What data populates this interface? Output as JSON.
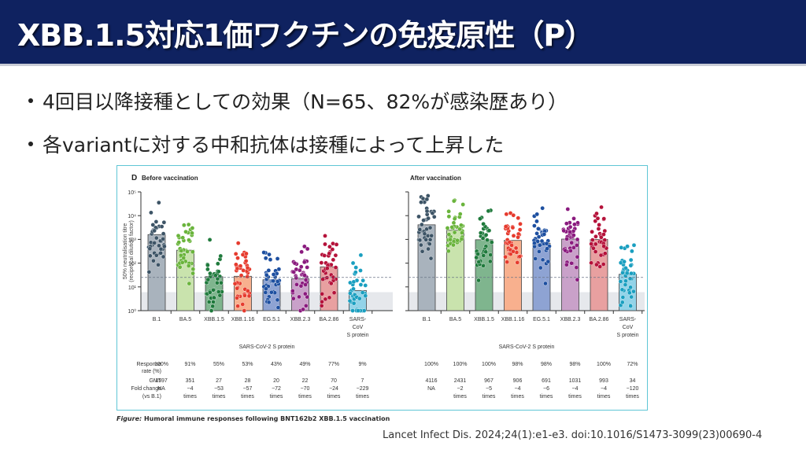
{
  "slide": {
    "title": "XBB.1.5対応1価ワクチンの免疫原性（P）",
    "bullets": [
      "4回目以降接種としての効果（N=65、82%が感染歴あり）",
      "各variantに対する中和抗体は接種によって上昇した"
    ],
    "caption_prefix": "Figure:",
    "caption_text": " Humoral immune responses following BNT162b2 XBB.1.5 vaccination",
    "citation": "Lancet Infect Dis. 2024;24(1):e1-e3. doi:10.1016/S1473-3099(23)00690-4"
  },
  "chart_data": [
    {
      "type": "bar",
      "panel_label": "D",
      "title": "Before vaccination",
      "xlabel": "SARS-CoV-2 S protein",
      "ylabel": "50% neutralisation titre",
      "ylabel2": "(reciprocal dilution factor)",
      "yscale": "log",
      "ylim": [
        1,
        100000
      ],
      "yticks": [
        "10⁰",
        "10¹",
        "10²",
        "10³",
        "10⁴",
        "10⁵"
      ],
      "detection_limit_line": 25,
      "shaded_below": 6,
      "categories": [
        "B.1",
        "BA.5",
        "XBB.1.5",
        "XBB.1.16",
        "EG.5.1",
        "XBB.2.3",
        "BA.2.86",
        "SARS-CoV S protein"
      ],
      "category_lines": [
        [
          "B.1"
        ],
        [
          "BA.5"
        ],
        [
          "XBB.1.5"
        ],
        [
          "XBB.1.16"
        ],
        [
          "EG.5.1"
        ],
        [
          "XBB.2.3"
        ],
        [
          "BA.2.86"
        ],
        [
          "SARS-",
          "CoV",
          "S protein"
        ]
      ],
      "values": [
        1597,
        351,
        27,
        28,
        20,
        22,
        70,
        7
      ],
      "bar_colors": [
        "#a9b3bd",
        "#c9e3ad",
        "#7fb58e",
        "#f8b08e",
        "#8ea3d3",
        "#c9a1c9",
        "#e8a0a0",
        "#93d3e8"
      ],
      "dot_colors": [
        "#3d5466",
        "#6ab43c",
        "#1f7a3c",
        "#e63b2e",
        "#1d4fa0",
        "#8a1a7e",
        "#b5123a",
        "#1a9fc0"
      ],
      "table": {
        "row_labels": [
          [
            "Response",
            "rate (%)"
          ],
          [
            "GMT"
          ],
          [
            "Fold change",
            "(vs B.1)"
          ]
        ],
        "response_rate": [
          "100%",
          "91%",
          "55%",
          "53%",
          "43%",
          "49%",
          "77%",
          "9%"
        ],
        "gmt": [
          "1597",
          "351",
          "27",
          "28",
          "20",
          "22",
          "70",
          "7"
        ],
        "fold_change": [
          "NA",
          "−4",
          "−53",
          "−57",
          "−72",
          "−70",
          "−24",
          "−229"
        ],
        "fold_unit": "times"
      }
    },
    {
      "type": "bar",
      "title": "After vaccination",
      "xlabel": "SARS-CoV-2 S protein",
      "yscale": "log",
      "ylim": [
        1,
        100000
      ],
      "detection_limit_line": 25,
      "shaded_below": 6,
      "categories": [
        "B.1",
        "BA.5",
        "XBB.1.5",
        "XBB.1.16",
        "EG.5.1",
        "XBB.2.3",
        "BA.2.86",
        "SARS-CoV S protein"
      ],
      "category_lines": [
        [
          "B.1"
        ],
        [
          "BA.5"
        ],
        [
          "XBB.1.5"
        ],
        [
          "XBB.1.16"
        ],
        [
          "EG.5.1"
        ],
        [
          "XBB.2.3"
        ],
        [
          "BA.2.86"
        ],
        [
          "SARS-",
          "CoV",
          "S protein"
        ]
      ],
      "values": [
        4116,
        2431,
        967,
        906,
        691,
        1031,
        993,
        34
      ],
      "bar_colors": [
        "#a9b3bd",
        "#c9e3ad",
        "#7fb58e",
        "#f8b08e",
        "#8ea3d3",
        "#c9a1c9",
        "#e8a0a0",
        "#93d3e8"
      ],
      "dot_colors": [
        "#3d5466",
        "#6ab43c",
        "#1f7a3c",
        "#e63b2e",
        "#1d4fa0",
        "#8a1a7e",
        "#b5123a",
        "#1a9fc0"
      ],
      "table": {
        "response_rate": [
          "100%",
          "100%",
          "100%",
          "98%",
          "98%",
          "98%",
          "100%",
          "72%"
        ],
        "gmt": [
          "4116",
          "2431",
          "967",
          "906",
          "691",
          "1031",
          "993",
          "34"
        ],
        "fold_change": [
          "NA",
          "−2",
          "−5",
          "−4",
          "−6",
          "−4",
          "−4",
          "−120"
        ],
        "fold_unit": "times"
      }
    }
  ]
}
